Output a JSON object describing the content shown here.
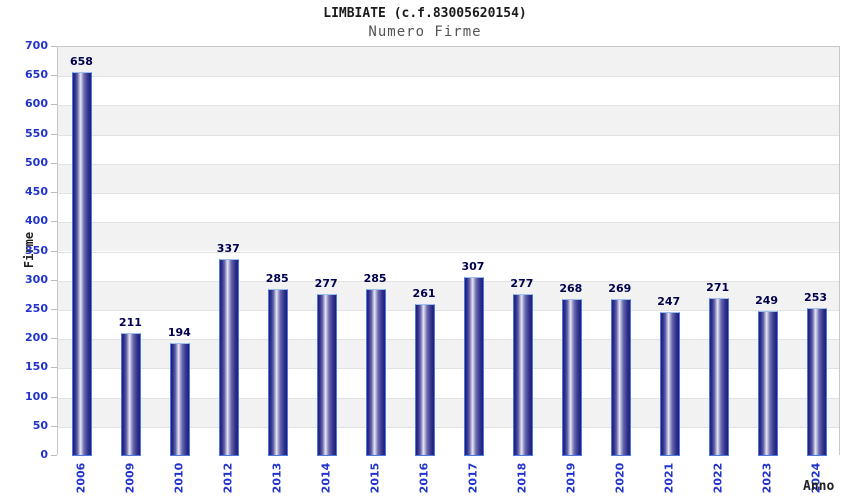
{
  "header": {
    "title": "LIMBIATE (c.f.83005620154)",
    "subtitle": "Numero Firme"
  },
  "chart_data": {
    "type": "bar",
    "title": "LIMBIATE (c.f.83005620154)",
    "subtitle": "Numero Firme",
    "xlabel": "Anno",
    "ylabel": "Firme",
    "categories": [
      "2006",
      "2009",
      "2010",
      "2012",
      "2013",
      "2014",
      "2015",
      "2016",
      "2017",
      "2018",
      "2019",
      "2020",
      "2021",
      "2022",
      "2023",
      "2024"
    ],
    "values": [
      658,
      211,
      194,
      337,
      285,
      277,
      285,
      261,
      307,
      277,
      268,
      269,
      247,
      271,
      249,
      253
    ],
    "ylim": [
      0,
      700
    ],
    "ytick_step": 50,
    "grid": true,
    "legend": "none",
    "value_labels_shown": true,
    "colors": {
      "title_text": "#1a1a1a",
      "subtitle_text": "#555555",
      "axis_tick_text": "#2233cc",
      "axis_title_text": "#222222",
      "value_label_text": "#00004d",
      "bar_border": "#4a7ae0",
      "bar_dark": "#1f1f7a",
      "bar_mid": "#6a6ab0",
      "bar_highlight": "#e8e8f4",
      "band_fill": "#f2f2f2",
      "grid_line": "#e2e2e2",
      "plot_border": "#c8c8c8",
      "background": "#ffffff"
    }
  }
}
